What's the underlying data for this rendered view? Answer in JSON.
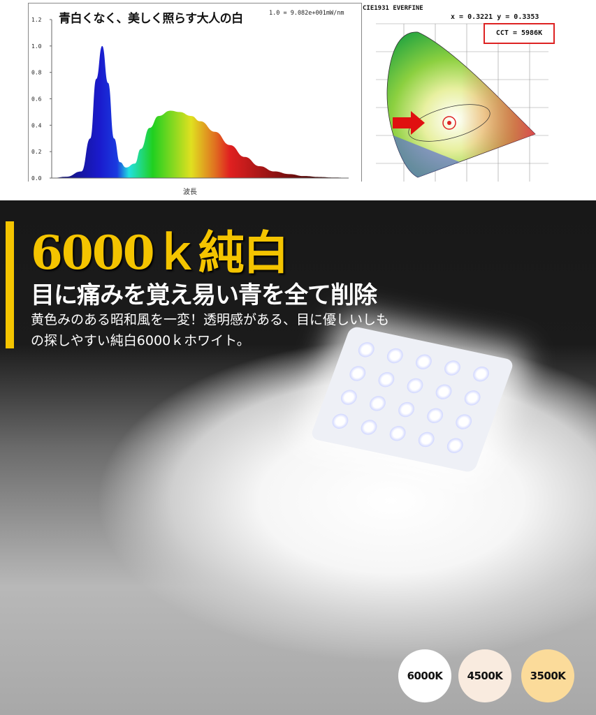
{
  "spectrum": {
    "title": "青白くなく、美しく照らす大人の白",
    "unit_note": "1.0 = 9.082e+001mW/nm",
    "xlabel": "波長"
  },
  "chart_data": {
    "type": "area",
    "title": "青白くなく、美しく照らす大人の白",
    "xlabel": "波長",
    "ylabel": "",
    "ylim": [
      0,
      1.2
    ],
    "yticks": [
      "0.0",
      "0.2",
      "0.4",
      "0.6",
      "0.8",
      "1.0",
      "1.2"
    ],
    "grid": false,
    "x_sample_positions": [
      0,
      0.05,
      0.1,
      0.13,
      0.15,
      0.17,
      0.19,
      0.21,
      0.23,
      0.25,
      0.28,
      0.3,
      0.33,
      0.36,
      0.4,
      0.43,
      0.47,
      0.5,
      0.55,
      0.6,
      0.65,
      0.7,
      0.75,
      0.8,
      0.85,
      0.9,
      0.95,
      1.0
    ],
    "values": [
      0,
      0.01,
      0.05,
      0.3,
      0.75,
      1.0,
      0.72,
      0.3,
      0.12,
      0.08,
      0.11,
      0.22,
      0.38,
      0.47,
      0.51,
      0.5,
      0.47,
      0.43,
      0.35,
      0.25,
      0.16,
      0.09,
      0.05,
      0.03,
      0.015,
      0.008,
      0.004,
      0.002
    ],
    "fill": "visible spectrum gradient"
  },
  "cie": {
    "title": "CIE1931   EVERFINE",
    "xy": "x = 0.3221  y = 0.3353",
    "cct": "CCT = 5986K"
  },
  "promo": {
    "headline": "6000ｋ純白",
    "subheadline": "目に痛みを覚え易い青を全て削除",
    "body_line1": "黄色みのある昭和風を一変！透明感がある、目に優しいしも",
    "body_line2": "の探しやすい純白6000ｋホワイト。",
    "accent_color": "#f4c400"
  },
  "color_options": [
    {
      "label": "6000K",
      "color": "#ffffff"
    },
    {
      "label": "4500K",
      "color": "#f9ebdf"
    },
    {
      "label": "3500K",
      "color": "#fbdb9a"
    }
  ]
}
